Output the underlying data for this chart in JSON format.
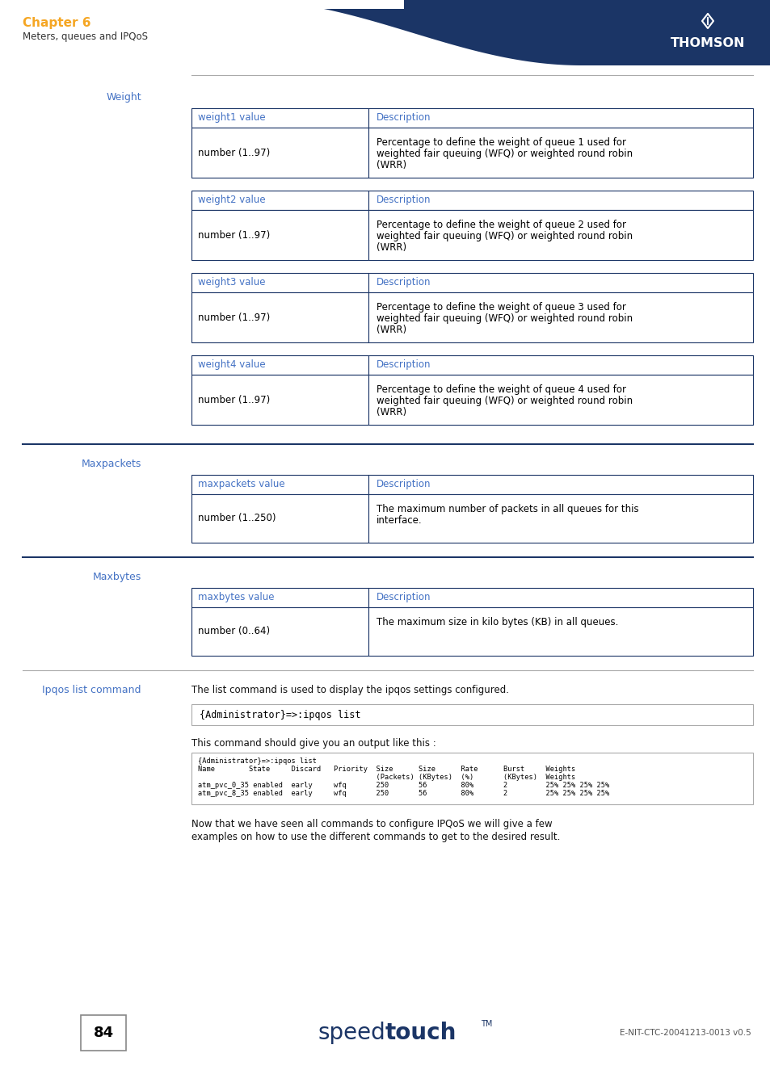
{
  "chapter_title": "Chapter 6",
  "chapter_subtitle": "Meters, queues and IPQoS",
  "chapter_color": "#F5A623",
  "header_bg_color": "#1B3566",
  "page_number": "84",
  "footer_text": "E-NIT-CTC-20041213-0013 v0.5",
  "section1_title": "Weight",
  "section2_title": "Maxpackets",
  "section3_title": "Maxbytes",
  "section4_title": "Ipqos list command",
  "section_color": "#4472C4",
  "tables_weight": [
    {
      "header": [
        "weight1 value",
        "Description"
      ],
      "rows": [
        [
          "number (1..97)",
          "Percentage to define the weight of queue 1 used for\nweighted fair queuing (WFQ) or weighted round robin\n(WRR)"
        ]
      ]
    },
    {
      "header": [
        "weight2 value",
        "Description"
      ],
      "rows": [
        [
          "number (1..97)",
          "Percentage to define the weight of queue 2 used for\nweighted fair queuing (WFQ) or weighted round robin\n(WRR)"
        ]
      ]
    },
    {
      "header": [
        "weight3 value",
        "Description"
      ],
      "rows": [
        [
          "number (1..97)",
          "Percentage to define the weight of queue 3 used for\nweighted fair queuing (WFQ) or weighted round robin\n(WRR)"
        ]
      ]
    },
    {
      "header": [
        "weight4 value",
        "Description"
      ],
      "rows": [
        [
          "number (1..97)",
          "Percentage to define the weight of queue 4 used for\nweighted fair queuing (WFQ) or weighted round robin\n(WRR)"
        ]
      ]
    }
  ],
  "table_maxpackets": {
    "header": [
      "maxpackets value",
      "Description"
    ],
    "rows": [
      [
        "number (1..250)",
        "The maximum number of packets in all queues for this\ninterface."
      ]
    ]
  },
  "table_maxbytes": {
    "header": [
      "maxbytes value",
      "Description"
    ],
    "rows": [
      [
        "number (0..64)",
        "The maximum size in kilo bytes (KB) in all queues."
      ]
    ]
  },
  "ipqos_text1": "The list command is used to display the ipqos settings configured.",
  "ipqos_command": "{Administrator}=>:ipqos list",
  "ipqos_text2": "This command should give you an output like this :",
  "ipqos_output_lines": [
    "{Administrator}=>:ipqos list",
    "Name        State     Discard   Priority  Size      Size      Rate      Burst     Weights",
    "                                          (Packets) (KBytes)  (%)       (KBytes)  Weights",
    "atm_pvc_0_35 enabled  early     wfq       250       56        80%       2         25% 25% 25% 25%",
    "atm_pvc_8_35 enabled  early     wfq       250       56        80%       2         25% 25% 25% 25%"
  ],
  "now_text_line1": "Now that we have seen all commands to configure IPQoS we will give a few",
  "now_text_line2": "examples on how to use the different commands to get to the desired result.",
  "table_border_color": "#1B3566",
  "table_header_text_color": "#4472C4",
  "sep_color": "#1B3566",
  "sep_color_light": "#AAAAAA"
}
